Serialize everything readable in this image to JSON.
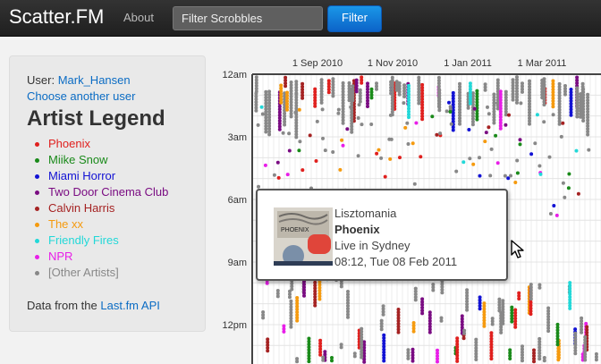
{
  "navbar": {
    "brand": "Scatter.FM",
    "about": "About",
    "search_placeholder": "Filter Scrobbles",
    "filter_button": "Filter"
  },
  "sidebar": {
    "user_label": "User:",
    "user_name": "Mark_Hansen",
    "choose_link": "Choose another user",
    "legend_title": "Artist Legend",
    "legend": [
      {
        "label": "Phoenix",
        "color": "#e0201e"
      },
      {
        "label": "Miike Snow",
        "color": "#1a8a1a"
      },
      {
        "label": "Miami Horror",
        "color": "#1212d4"
      },
      {
        "label": "Two Door Cinema Club",
        "color": "#7a0c82"
      },
      {
        "label": "Calvin Harris",
        "color": "#a52222"
      },
      {
        "label": "The xx",
        "color": "#f59a0e"
      },
      {
        "label": "Friendly Fires",
        "color": "#22d8d8"
      },
      {
        "label": "NPR",
        "color": "#e81ee8"
      },
      {
        "label": "[Other Artists]",
        "color": "#888888"
      }
    ],
    "data_prefix": "Data from the",
    "data_link": "Last.fm API"
  },
  "chart_data": {
    "type": "scatter",
    "x_tick_labels": [
      "1 Sep 2010",
      "1 Nov 2010",
      "1 Jan 2011",
      "1 Mar 2011"
    ],
    "y_tick_labels": [
      "12am",
      "3am",
      "6am",
      "9am",
      "12pm"
    ],
    "ylim_hours": [
      0,
      14
    ],
    "grid": true,
    "series_source": "scrobbles by artist (legend colors)"
  },
  "tooltip": {
    "track": "Lisztomania",
    "artist": "Phoenix",
    "album": "Live in Sydney",
    "time": "08:12, Tue 08 Feb 2011",
    "art_title": "PHOENIX"
  }
}
